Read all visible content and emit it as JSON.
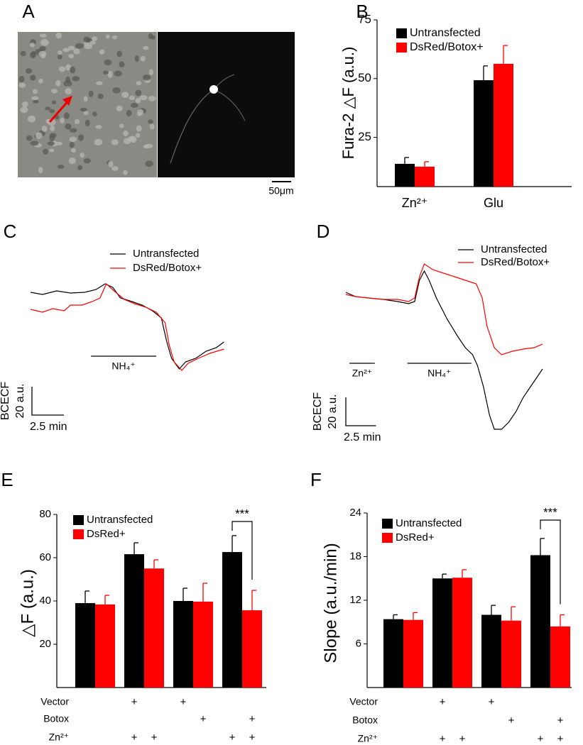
{
  "chart_data": [
    {
      "panel": "A",
      "type": "image",
      "scale_bar": "50μm"
    },
    {
      "panel": "B",
      "type": "bar",
      "ylabel": "Fura-2 △F (a.u.)",
      "categories": [
        "Zn²⁺",
        "Glu"
      ],
      "series": [
        {
          "name": "Untransfected",
          "color": "#000000",
          "values": [
            13.7,
            49.3
          ],
          "errors": [
            2.7,
            6.1
          ]
        },
        {
          "name": "DsRed/Botox+",
          "color": "#ff0000",
          "values": [
            12.5,
            56.3
          ],
          "errors": [
            2.1,
            7.8
          ]
        }
      ],
      "ylim": [
        4,
        75
      ],
      "yticks": [
        25,
        50,
        75
      ],
      "legend": "upper-left"
    },
    {
      "panel": "C",
      "type": "line",
      "ylabel": "BCECF",
      "series": [
        {
          "name": "Untransfected",
          "color": "#000000",
          "x": [
            0.17,
            1.1,
            2.2,
            3.3,
            4.4,
            5.3,
            6.0,
            6.6,
            7.2,
            8.1,
            8.9,
            9.7,
            10.4,
            10.8,
            11.2,
            11.8,
            12.3,
            13.1,
            13.9,
            14.7,
            15.3
          ],
          "values": [
            59,
            57.5,
            60,
            58.5,
            59,
            61,
            65,
            62.5,
            55,
            52.5,
            50,
            46,
            41,
            25,
            12.5,
            5,
            10,
            12.5,
            17.5,
            20,
            24
          ]
        },
        {
          "name": "DsRed/Botox+",
          "color": "#ff0000",
          "x": [
            0.17,
            1.1,
            1.9,
            2.8,
            3.3,
            4.2,
            5.0,
            5.6,
            6.1,
            6.7,
            7.5,
            8.3,
            9.2,
            10.0,
            10.7,
            11.0,
            11.4,
            12.0,
            12.5,
            13.3,
            14.2,
            15.3
          ],
          "values": [
            47,
            45,
            47.5,
            46,
            50,
            50,
            52.5,
            55,
            65,
            60,
            54,
            51,
            48.5,
            45,
            37.5,
            22.5,
            10,
            4,
            9,
            12.5,
            16,
            19
          ]
        }
      ],
      "xlim": [
        0,
        16
      ],
      "ylim": [
        0,
        80
      ],
      "annotations": [
        {
          "label": "NH₄⁺",
          "start": 4.9,
          "end": 10.0
        }
      ],
      "scalebar": {
        "x": {
          "value": 2.5,
          "label": "2.5 min"
        },
        "y": {
          "value": 20,
          "label": "20 a.u."
        }
      }
    },
    {
      "panel": "D",
      "type": "line",
      "ylabel": "BCECF",
      "series": [
        {
          "name": "Untransfected",
          "color": "#000000",
          "x": [
            0,
            0.8,
            1.9,
            3.1,
            4.3,
            5.2,
            5.7,
            6.1,
            6.5,
            6.9,
            7.5,
            8.4,
            9.3,
            9.9,
            10.5,
            10.9,
            11.4,
            11.9,
            12.3,
            12.9,
            13.5,
            14.1,
            14.7,
            15.3,
            15.9,
            16.3
          ],
          "values": [
            99,
            96,
            95,
            94,
            92.5,
            91,
            92.5,
            107.5,
            114,
            107.5,
            95,
            80,
            67.5,
            60,
            55,
            47.5,
            32.5,
            12.5,
            2.5,
            2.5,
            7.5,
            15,
            25,
            32.5,
            40,
            45
          ]
        },
        {
          "name": "DsRed/Botox+",
          "color": "#ff0000",
          "x": [
            0,
            0.8,
            1.9,
            3.1,
            4.3,
            5.2,
            5.7,
            6.1,
            6.5,
            7.2,
            8.1,
            9.0,
            9.9,
            10.8,
            11.3,
            11.7,
            12.3,
            12.9,
            13.8,
            14.7,
            15.6,
            16.3
          ],
          "values": [
            97.5,
            96,
            95,
            94,
            94,
            92.5,
            95,
            110,
            119,
            115,
            112.5,
            110,
            107.5,
            105,
            95,
            75,
            60,
            55,
            57.5,
            59,
            60,
            62.5
          ]
        }
      ],
      "xlim": [
        0,
        16.5
      ],
      "ylim": [
        0,
        120
      ],
      "annotations": [
        {
          "label": "Zn²⁺",
          "start": 0.3,
          "end": 2.4
        },
        {
          "label": "NH₄⁺",
          "start": 5.1,
          "end": 10.4
        }
      ],
      "scalebar": {
        "x": {
          "value": 2.5,
          "label": "2.5 min"
        },
        "y": {
          "value": 20,
          "label": "20 a.u."
        }
      }
    },
    {
      "panel": "E",
      "type": "bar",
      "ylabel": "△F (a.u.)",
      "categories": [
        null,
        null,
        null,
        null
      ],
      "series": [
        {
          "name": "Untransfected",
          "color": "#000000",
          "values": [
            39,
            61.6,
            40,
            62.6
          ],
          "errors": [
            5.6,
            5.3,
            5.9,
            7.6
          ]
        },
        {
          "name": "DsRed+",
          "color": "#ff0000",
          "values": [
            38.4,
            55,
            39.7,
            35.7
          ],
          "errors": [
            4.2,
            4.0,
            8.5,
            9.2
          ]
        }
      ],
      "ylim": [
        0,
        80
      ],
      "yticks": [
        20,
        40,
        60,
        80
      ],
      "legend": "upper-left",
      "significance": {
        "label": "***",
        "group": 3
      },
      "conditions": [
        {
          "name": "Vector",
          "marks": [
            null,
            null,
            "+",
            null,
            "+",
            null,
            null,
            null
          ]
        },
        {
          "name": "Botox",
          "marks": [
            null,
            null,
            null,
            null,
            null,
            "+",
            null,
            "+"
          ]
        },
        {
          "name": "Zn²⁺",
          "marks": [
            null,
            null,
            "+",
            "+",
            null,
            null,
            "+",
            "+"
          ]
        }
      ]
    },
    {
      "panel": "F",
      "type": "bar",
      "ylabel": "Slope (a.u./min)",
      "categories": [
        null,
        null,
        null,
        null
      ],
      "series": [
        {
          "name": "Untransfected",
          "color": "#000000",
          "values": [
            9.4,
            15,
            10,
            18.2
          ],
          "errors": [
            0.6,
            0.6,
            1.3,
            2.3
          ]
        },
        {
          "name": "DsRed+",
          "color": "#ff0000",
          "values": [
            9.3,
            15.1,
            9.2,
            8.4
          ],
          "errors": [
            1.0,
            1.1,
            1.9,
            1.6
          ]
        }
      ],
      "ylim": [
        0,
        24
      ],
      "yticks": [
        6,
        12,
        18,
        24
      ],
      "legend": "upper-left",
      "significance": {
        "label": "***",
        "group": 3
      },
      "conditions": [
        {
          "name": "Vector",
          "marks": [
            null,
            null,
            "+",
            null,
            "+",
            null,
            null,
            null
          ]
        },
        {
          "name": "Botox",
          "marks": [
            null,
            null,
            null,
            null,
            null,
            "+",
            null,
            "+"
          ]
        },
        {
          "name": "Zn²⁺",
          "marks": [
            null,
            null,
            "+",
            "+",
            null,
            null,
            "+",
            "+"
          ]
        }
      ]
    }
  ]
}
